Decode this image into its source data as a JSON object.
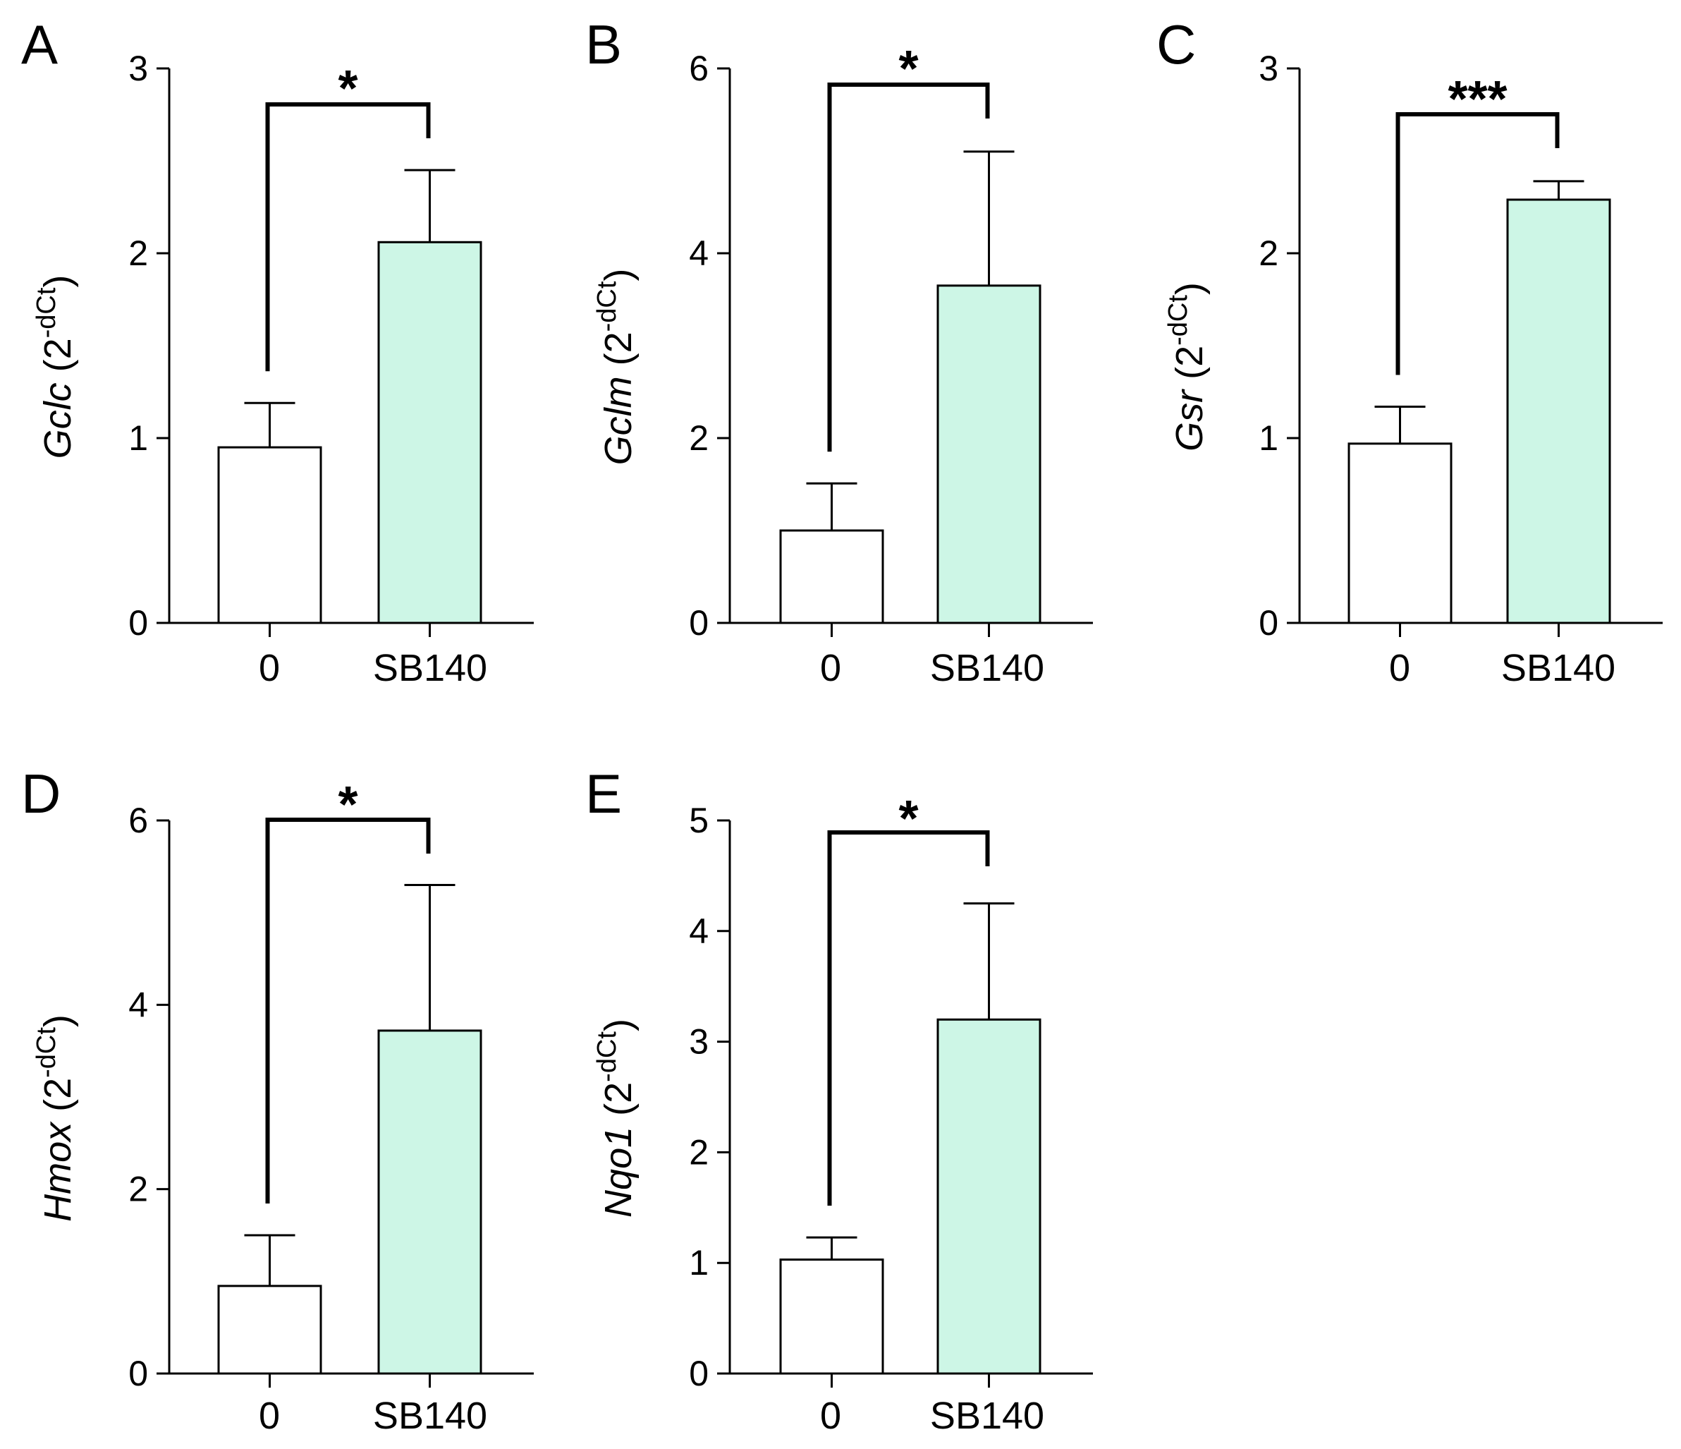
{
  "figure": {
    "background": "#ffffff"
  },
  "colors": {
    "control_fill": "#ffffff",
    "treated_fill": "#cdf6e6",
    "stroke": "#000000"
  },
  "chart_data": [
    {
      "panel": "A",
      "type": "bar",
      "gene": "Gclc",
      "unit": "(2",
      "unit_sup": "-dCt",
      "unit_close": ")",
      "categories": [
        "0",
        "SB140"
      ],
      "values": [
        0.95,
        2.06
      ],
      "errors": [
        0.24,
        0.39
      ],
      "ylim": [
        0,
        3
      ],
      "yticks": [
        0,
        1,
        2,
        3
      ],
      "significance": "*"
    },
    {
      "panel": "B",
      "type": "bar",
      "gene": "Gclm",
      "unit": "(2",
      "unit_sup": "-dCt",
      "unit_close": ")",
      "categories": [
        "0",
        "SB140"
      ],
      "values": [
        1.0,
        3.65
      ],
      "errors": [
        0.51,
        1.45
      ],
      "ylim": [
        0,
        6
      ],
      "yticks": [
        0,
        2,
        4,
        6
      ],
      "significance": "*"
    },
    {
      "panel": "C",
      "type": "bar",
      "gene": "Gsr",
      "unit": "(2",
      "unit_sup": "-dCt",
      "unit_close": ")",
      "categories": [
        "0",
        "SB140"
      ],
      "values": [
        0.97,
        2.29
      ],
      "errors": [
        0.2,
        0.1
      ],
      "ylim": [
        0,
        3
      ],
      "yticks": [
        0,
        1,
        2,
        3
      ],
      "significance": "***"
    },
    {
      "panel": "D",
      "type": "bar",
      "gene": "Hmox",
      "unit": "(2",
      "unit_sup": "-dCt",
      "unit_close": ")",
      "categories": [
        "0",
        "SB140"
      ],
      "values": [
        0.95,
        3.72
      ],
      "errors": [
        0.55,
        1.58
      ],
      "ylim": [
        0,
        6
      ],
      "yticks": [
        0,
        2,
        4,
        6
      ],
      "significance": "*"
    },
    {
      "panel": "E",
      "type": "bar",
      "gene": "Nqo1",
      "unit": "(2",
      "unit_sup": "-dCt",
      "unit_close": ")",
      "categories": [
        "0",
        "SB140"
      ],
      "values": [
        1.03,
        3.2
      ],
      "errors": [
        0.2,
        1.05
      ],
      "ylim": [
        0,
        5
      ],
      "yticks": [
        0,
        1,
        2,
        3,
        4,
        5
      ],
      "significance": "*"
    }
  ]
}
